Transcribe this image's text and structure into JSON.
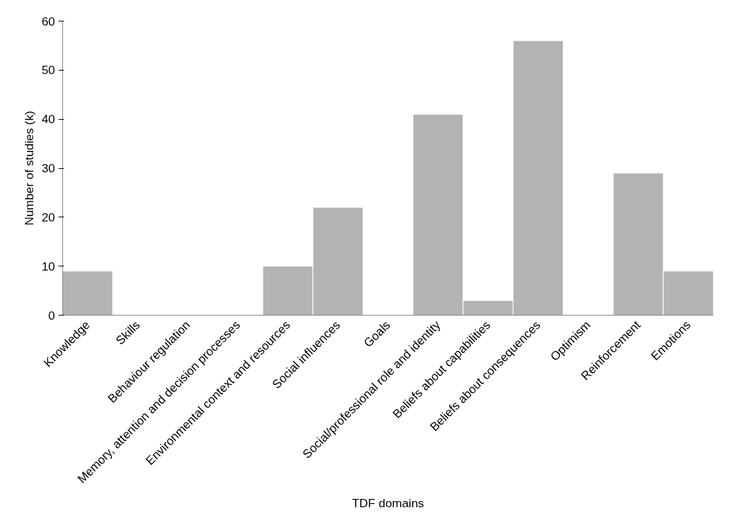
{
  "chart_data": {
    "type": "bar",
    "xlabel": "TDF domains",
    "ylabel": "Number of studies (k)",
    "categories": [
      "Knowledge",
      "Skills",
      "Behaviour regulation",
      "Memory, attention and decision processes",
      "Environmental context and resources",
      "Social influences",
      "Goals",
      "Social/professional role and identity",
      "Beliefs about capabilities",
      "Beliefs about consequences",
      "Optimism",
      "Reinforcement",
      "Emotions"
    ],
    "values": [
      9,
      0,
      0,
      0,
      10,
      22,
      0,
      41,
      3,
      56,
      0,
      29,
      9
    ],
    "color": "#b3b3b3",
    "ylim": [
      0,
      60
    ],
    "yticks": [
      0,
      10,
      20,
      30,
      40,
      50,
      60
    ],
    "grid": false
  }
}
